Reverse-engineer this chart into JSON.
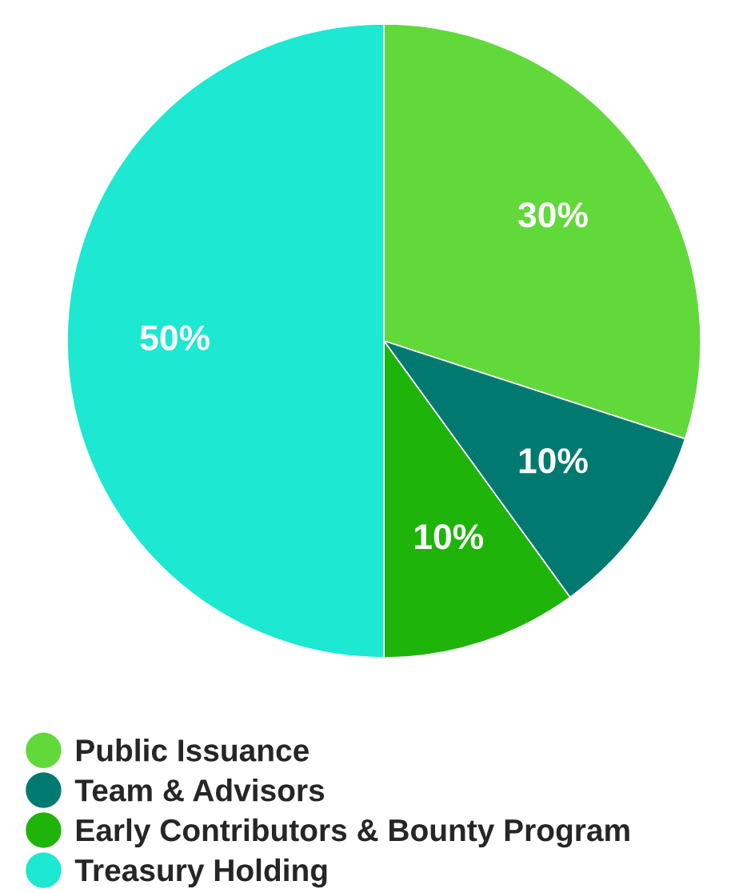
{
  "chart_data": {
    "type": "pie",
    "categories": [
      "Public Issuance",
      "Team & Advisors",
      "Early Contributors & Bounty Program",
      "Treasury Holding"
    ],
    "values": [
      30,
      10,
      10,
      50
    ],
    "colors": [
      "#62d93b",
      "#007a70",
      "#1fb40a",
      "#1de8d1"
    ],
    "value_labels": [
      "30%",
      "10%",
      "10%",
      "50%"
    ],
    "legend": "bottom"
  }
}
